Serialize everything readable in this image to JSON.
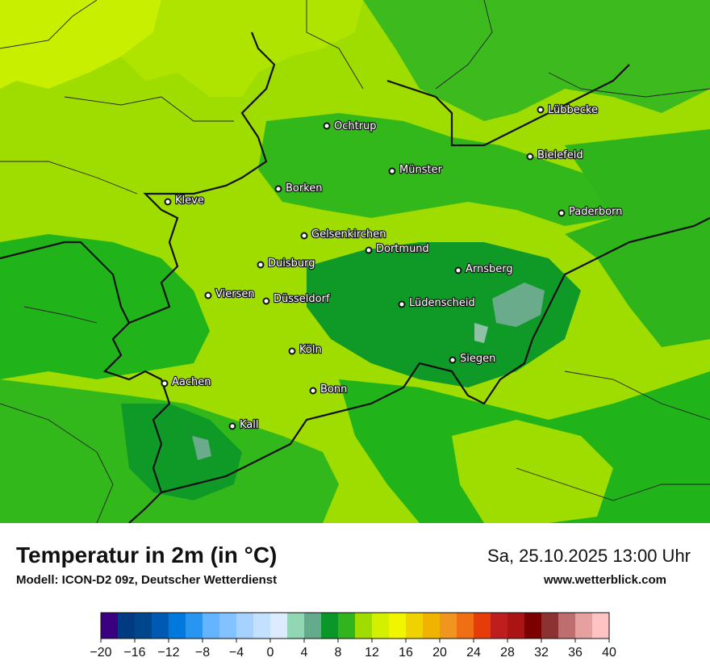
{
  "map": {
    "cities": [
      {
        "name": "Lübbecke"
      },
      {
        "name": "Ochtrup"
      },
      {
        "name": "Bielefeld"
      },
      {
        "name": "Münster"
      },
      {
        "name": "Borken"
      },
      {
        "name": "Kleve"
      },
      {
        "name": "Paderborn"
      },
      {
        "name": "Gelsenkirchen"
      },
      {
        "name": "Dortmund"
      },
      {
        "name": "Duisburg"
      },
      {
        "name": "Arnsberg"
      },
      {
        "name": "Viersen"
      },
      {
        "name": "Düsseldorf"
      },
      {
        "name": "Lüdenscheid"
      },
      {
        "name": "Köln"
      },
      {
        "name": "Siegen"
      },
      {
        "name": "Aachen"
      },
      {
        "name": "Bonn"
      },
      {
        "name": "Kall"
      }
    ],
    "colors": {
      "warm_yellowgreen": "#c8ef00",
      "light_green": "#9fdc00",
      "mid_green": "#33b81b",
      "green": "#20b31a",
      "dark_green": "#0f9a28",
      "cool_teal": "#6aab8c",
      "teal_light": "#8fc1a6"
    }
  },
  "header": {
    "title": "Temperatur in 2m (in °C)",
    "model": "Modell: ICON-D2 09z, Deutscher Wetterdienst",
    "datetime": "Sa, 25.10.2025 13:00 Uhr",
    "website": "www.wetterblick.com"
  },
  "legend": {
    "ticks": [
      "−20",
      "−16",
      "−12",
      "−8",
      "−4",
      "0",
      "4",
      "8",
      "12",
      "16",
      "20",
      "24",
      "28",
      "32",
      "36",
      "40"
    ],
    "colors": [
      "#3b0080",
      "#003a80",
      "#00468c",
      "#005ab4",
      "#0078dc",
      "#2896f0",
      "#64b4ff",
      "#82c3ff",
      "#a5d2ff",
      "#c3e1ff",
      "#dcebff",
      "#91d7b4",
      "#64aa8c",
      "#0a9628",
      "#32b41e",
      "#a0dc00",
      "#d2f000",
      "#f0f500",
      "#f0d200",
      "#f0b400",
      "#f0961e",
      "#f06e14",
      "#e63c0a",
      "#be1e1e",
      "#aa1414",
      "#7d0000",
      "#8c3232",
      "#be6e6e",
      "#e6a0a0",
      "#ffc3c3"
    ]
  }
}
